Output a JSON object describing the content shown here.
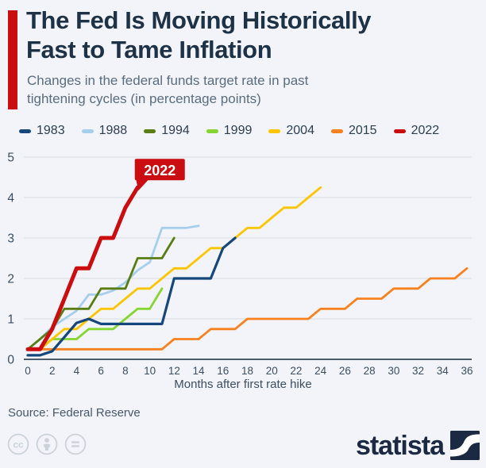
{
  "header": {
    "title_line1": "The Fed Is Moving Historically",
    "title_line2": "Fast to Tame Inflation",
    "subtitle_line1": "Changes in the federal funds target rate in past",
    "subtitle_line2": "tightening cycles (in percentage points)"
  },
  "chart_data": {
    "type": "line",
    "title": "The Fed Is Moving Historically Fast to Tame Inflation",
    "subtitle": "Changes in the federal funds target rate in past tightening cycles (in percentage points)",
    "xlabel": "Months after first rate hike",
    "ylabel": "",
    "xlim": [
      0,
      36
    ],
    "ylim": [
      0,
      5
    ],
    "x_ticks": [
      0,
      2,
      4,
      6,
      8,
      10,
      12,
      14,
      16,
      18,
      20,
      22,
      24,
      26,
      28,
      30,
      32,
      34,
      36
    ],
    "y_ticks": [
      0,
      1,
      2,
      3,
      4,
      5
    ],
    "grid": "horizontal",
    "legend_position": "top",
    "annotation": {
      "label": "2022",
      "x": 9,
      "y": 4.25
    },
    "series": [
      {
        "name": "1983",
        "color": "#15477d",
        "width": 3.2,
        "x": [
          0,
          1,
          2,
          3,
          4,
          5,
          6,
          7,
          8,
          9,
          10,
          11,
          12,
          13,
          14,
          15,
          16,
          17
        ],
        "values": [
          0.1,
          0.1,
          0.2,
          0.55,
          0.9,
          1.0,
          0.875,
          0.875,
          0.875,
          0.875,
          0.875,
          0.875,
          2.0,
          2.0,
          2.0,
          2.0,
          2.75,
          3.0
        ]
      },
      {
        "name": "1988",
        "color": "#a6cfee",
        "width": 2.8,
        "x": [
          0,
          1,
          2,
          3,
          4,
          5,
          6,
          7,
          8,
          9,
          10,
          11,
          12,
          13,
          14
        ],
        "values": [
          0.25,
          0.5,
          0.8,
          1.0,
          1.2,
          1.6,
          1.6,
          1.7,
          1.9,
          2.2,
          2.4,
          3.25,
          3.25,
          3.25,
          3.3
        ]
      },
      {
        "name": "1994",
        "color": "#5a7d13",
        "width": 2.8,
        "x": [
          0,
          1,
          2,
          3,
          4,
          5,
          6,
          7,
          8,
          9,
          10,
          11,
          12
        ],
        "values": [
          0.25,
          0.5,
          0.75,
          1.25,
          1.25,
          1.25,
          1.75,
          1.75,
          1.75,
          2.5,
          2.5,
          2.5,
          3.0
        ]
      },
      {
        "name": "1999",
        "color": "#85d630",
        "width": 2.8,
        "x": [
          0,
          1,
          2,
          3,
          4,
          5,
          6,
          7,
          8,
          9,
          10,
          11
        ],
        "values": [
          0.25,
          0.25,
          0.5,
          0.5,
          0.5,
          0.75,
          0.75,
          0.75,
          1.0,
          1.25,
          1.25,
          1.75
        ]
      },
      {
        "name": "2004",
        "color": "#fdc500",
        "width": 2.8,
        "x": [
          0,
          1,
          2,
          3,
          4,
          5,
          6,
          7,
          8,
          9,
          10,
          11,
          12,
          13,
          14,
          15,
          16,
          17,
          18,
          19,
          20,
          21,
          22,
          23,
          24
        ],
        "values": [
          0.25,
          0.25,
          0.5,
          0.75,
          0.75,
          1.0,
          1.25,
          1.25,
          1.5,
          1.75,
          1.75,
          2.0,
          2.25,
          2.25,
          2.5,
          2.75,
          2.75,
          3.0,
          3.25,
          3.25,
          3.5,
          3.75,
          3.75,
          4.0,
          4.25
        ]
      },
      {
        "name": "2015",
        "color": "#f8811f",
        "width": 2.8,
        "x": [
          0,
          1,
          2,
          3,
          4,
          5,
          6,
          7,
          8,
          9,
          10,
          11,
          12,
          13,
          14,
          15,
          16,
          17,
          18,
          19,
          20,
          21,
          22,
          23,
          24,
          25,
          26,
          27,
          28,
          29,
          30,
          31,
          32,
          33,
          34,
          35,
          36
        ],
        "values": [
          0.25,
          0.25,
          0.25,
          0.25,
          0.25,
          0.25,
          0.25,
          0.25,
          0.25,
          0.25,
          0.25,
          0.25,
          0.5,
          0.5,
          0.5,
          0.75,
          0.75,
          0.75,
          1.0,
          1.0,
          1.0,
          1.0,
          1.0,
          1.0,
          1.25,
          1.25,
          1.25,
          1.5,
          1.5,
          1.5,
          1.75,
          1.75,
          1.75,
          2.0,
          2.0,
          2.0,
          2.25
        ]
      },
      {
        "name": "2022",
        "color": "#cb0d10",
        "width": 5,
        "x": [
          0,
          1,
          2,
          3,
          4,
          5,
          6,
          7,
          8,
          9
        ],
        "values": [
          0.25,
          0.25,
          0.75,
          1.5,
          2.25,
          2.25,
          3.0,
          3.0,
          3.75,
          4.25
        ]
      }
    ]
  },
  "axis": {
    "xlabel": "Months after first rate hike"
  },
  "source": "Source: Federal Reserve",
  "footer": {
    "brand": "statista",
    "license_icons": [
      "cc-icon",
      "attribution-person-icon",
      "equal-license-icon"
    ]
  },
  "colors": {
    "background": "#f2f4f9",
    "accent_red": "#c90d10",
    "title": "#1e3247",
    "subtitle": "#5a6c80",
    "axis_text": "#3b4e61",
    "gridline": "#d8dbe1",
    "axis_line": "#4f5d6b",
    "brand_navy": "#1b2a42",
    "license_icon": "#ccd2da"
  }
}
